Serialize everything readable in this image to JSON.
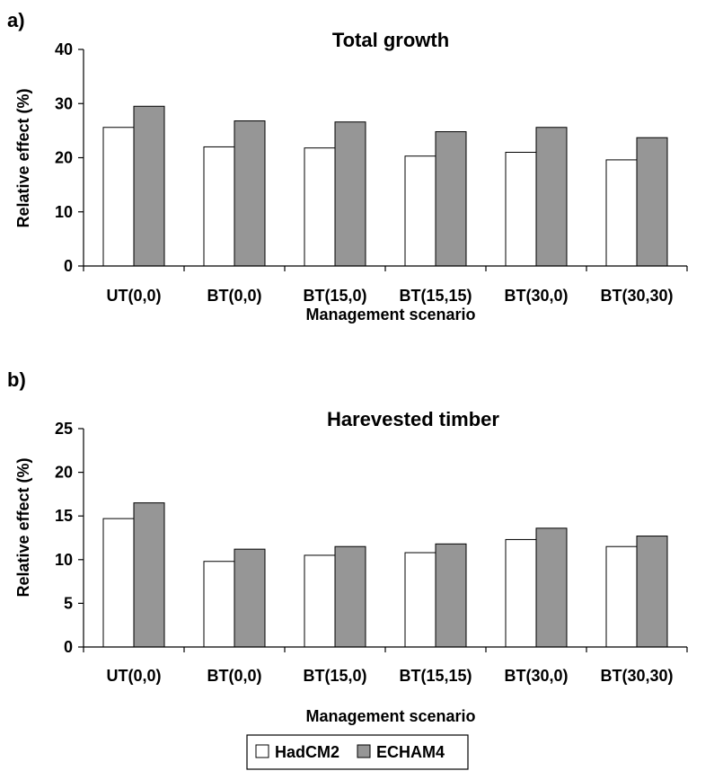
{
  "chart_data": [
    {
      "type": "bar",
      "panel_label": "a)",
      "title": "Total growth",
      "xlabel": "Management scenario",
      "ylabel": "Relative effect (%)",
      "ylim": [
        0,
        40
      ],
      "yticks": [
        0,
        10,
        20,
        30,
        40
      ],
      "categories": [
        "UT(0,0)",
        "BT(0,0)",
        "BT(15,0)",
        "BT(15,15)",
        "BT(30,0)",
        "BT(30,30)"
      ],
      "series": [
        {
          "name": "HadCM2",
          "color": "#ffffff",
          "values": [
            25.6,
            22.0,
            21.8,
            20.3,
            21.0,
            19.6
          ]
        },
        {
          "name": "ECHAM4",
          "color": "#969696",
          "values": [
            29.5,
            26.8,
            26.6,
            24.8,
            25.6,
            23.7
          ]
        }
      ],
      "grid": false
    },
    {
      "type": "bar",
      "panel_label": "b)",
      "title": "Harevested timber",
      "xlabel": "Management scenario",
      "ylabel": "Relative effect (%)",
      "ylim": [
        0,
        25
      ],
      "yticks": [
        0,
        5,
        10,
        15,
        20,
        25
      ],
      "categories": [
        "UT(0,0)",
        "BT(0,0)",
        "BT(15,0)",
        "BT(15,15)",
        "BT(30,0)",
        "BT(30,30)"
      ],
      "series": [
        {
          "name": "HadCM2",
          "color": "#ffffff",
          "values": [
            14.7,
            9.8,
            10.5,
            10.8,
            12.3,
            11.5
          ]
        },
        {
          "name": "ECHAM4",
          "color": "#969696",
          "values": [
            16.5,
            11.2,
            11.5,
            11.8,
            13.6,
            12.7
          ]
        }
      ],
      "grid": false
    }
  ],
  "legend": {
    "placement": "bottom-center",
    "items": [
      {
        "name": "HadCM2",
        "color": "#ffffff"
      },
      {
        "name": "ECHAM4",
        "color": "#969696"
      }
    ]
  }
}
